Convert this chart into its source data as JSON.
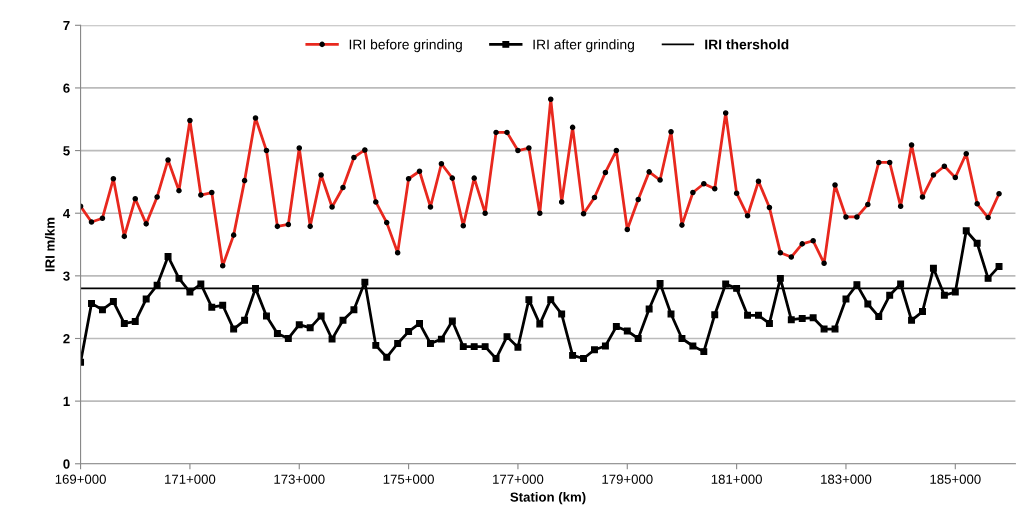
{
  "chart_data": {
    "type": "line",
    "xlabel": "Station (km)",
    "ylabel": "IRI m/km",
    "categories": [
      "169+000",
      null,
      null,
      null,
      null,
      null,
      null,
      null,
      null,
      null,
      "171+000",
      null,
      null,
      null,
      null,
      null,
      null,
      null,
      null,
      null,
      "173+000",
      null,
      null,
      null,
      null,
      null,
      null,
      null,
      null,
      null,
      "175+000",
      null,
      null,
      null,
      null,
      null,
      null,
      null,
      null,
      null,
      "177+000",
      null,
      null,
      null,
      null,
      null,
      null,
      null,
      null,
      null,
      "179+000",
      null,
      null,
      null,
      null,
      null,
      null,
      null,
      null,
      null,
      "181+000",
      null,
      null,
      null,
      null,
      null,
      null,
      null,
      null,
      null,
      "183+000",
      null,
      null,
      null,
      null,
      null,
      null,
      null,
      null,
      null,
      "185+000",
      null,
      null,
      null,
      null
    ],
    "series": [
      {
        "name": "IRI before grinding",
        "color": "#e8281e",
        "marker": "circle",
        "values": [
          4.11,
          3.86,
          3.92,
          4.55,
          3.63,
          4.23,
          3.83,
          4.26,
          4.85,
          4.36,
          5.48,
          4.29,
          4.33,
          3.16,
          3.65,
          4.52,
          5.52,
          5.0,
          3.79,
          3.82,
          5.04,
          3.79,
          4.61,
          4.1,
          4.41,
          4.89,
          5.01,
          4.18,
          3.85,
          3.37,
          4.55,
          4.67,
          4.1,
          4.79,
          4.56,
          3.8,
          4.56,
          4.0,
          5.29,
          5.29,
          5.0,
          5.04,
          4.0,
          5.82,
          4.18,
          5.37,
          3.99,
          4.25,
          4.65,
          5.0,
          3.74,
          4.22,
          4.66,
          4.53,
          5.3,
          3.81,
          4.33,
          4.47,
          4.39,
          5.6,
          4.32,
          3.96,
          4.51,
          4.09,
          3.37,
          3.3,
          3.51,
          3.56,
          3.2,
          4.45,
          3.94,
          3.94,
          4.14,
          4.81,
          4.81,
          4.11,
          5.09,
          4.26,
          4.61,
          4.75,
          4.57,
          4.95,
          4.15,
          3.93,
          4.31
        ]
      },
      {
        "name": "IRI after grinding",
        "color": "#000000",
        "marker": "square",
        "values": [
          1.62,
          2.56,
          2.46,
          2.59,
          2.24,
          2.27,
          2.63,
          2.85,
          3.31,
          2.96,
          2.74,
          2.87,
          2.5,
          2.53,
          2.15,
          2.29,
          2.8,
          2.36,
          2.08,
          2.0,
          2.22,
          2.17,
          2.36,
          1.99,
          2.29,
          2.46,
          2.9,
          1.89,
          1.7,
          1.92,
          2.11,
          2.24,
          1.92,
          1.99,
          2.28,
          1.87,
          1.87,
          1.87,
          1.68,
          2.03,
          1.86,
          2.62,
          2.23,
          2.62,
          2.39,
          1.73,
          1.68,
          1.82,
          1.88,
          2.19,
          2.12,
          2.0,
          2.47,
          2.88,
          2.39,
          2.0,
          1.88,
          1.79,
          2.38,
          2.87,
          2.8,
          2.37,
          2.37,
          2.24,
          2.96,
          2.3,
          2.32,
          2.33,
          2.15,
          2.15,
          2.63,
          2.86,
          2.55,
          2.35,
          2.69,
          2.87,
          2.29,
          2.43,
          3.12,
          2.69,
          2.74,
          3.72,
          3.52,
          2.96,
          3.15
        ]
      }
    ],
    "ref_lines": [
      {
        "axis": "y",
        "value": 2.8,
        "label": "IRI thershold",
        "color": "#000000",
        "line_style": "solid"
      }
    ],
    "ylim": [
      0,
      7
    ],
    "yticks": [
      0,
      1,
      2,
      3,
      4,
      5,
      6,
      7
    ],
    "grid": "y",
    "legend": "top"
  }
}
